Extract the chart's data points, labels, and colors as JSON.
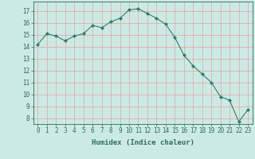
{
  "x": [
    0,
    1,
    2,
    3,
    4,
    5,
    6,
    7,
    8,
    9,
    10,
    11,
    12,
    13,
    14,
    15,
    16,
    17,
    18,
    19,
    20,
    21,
    22,
    23
  ],
  "y": [
    14.2,
    15.1,
    14.9,
    14.5,
    14.9,
    15.1,
    15.8,
    15.6,
    16.1,
    16.4,
    17.1,
    17.2,
    16.8,
    16.4,
    15.9,
    14.8,
    13.3,
    12.4,
    11.7,
    11.0,
    9.8,
    9.5,
    7.7,
    8.7
  ],
  "xlabel": "Humidex (Indice chaleur)",
  "ylim": [
    7.5,
    17.8
  ],
  "xlim": [
    -0.5,
    23.5
  ],
  "yticks": [
    8,
    9,
    10,
    11,
    12,
    13,
    14,
    15,
    16,
    17
  ],
  "xticks": [
    0,
    1,
    2,
    3,
    4,
    5,
    6,
    7,
    8,
    9,
    10,
    11,
    12,
    13,
    14,
    15,
    16,
    17,
    18,
    19,
    20,
    21,
    22,
    23
  ],
  "line_color": "#2e7d6e",
  "marker": "D",
  "marker_size": 2.0,
  "bg_color": "#cceae4",
  "grid_color": "#e8a0a0",
  "label_color": "#2e6b5e",
  "tick_fontsize": 5.5,
  "xlabel_fontsize": 6.5
}
